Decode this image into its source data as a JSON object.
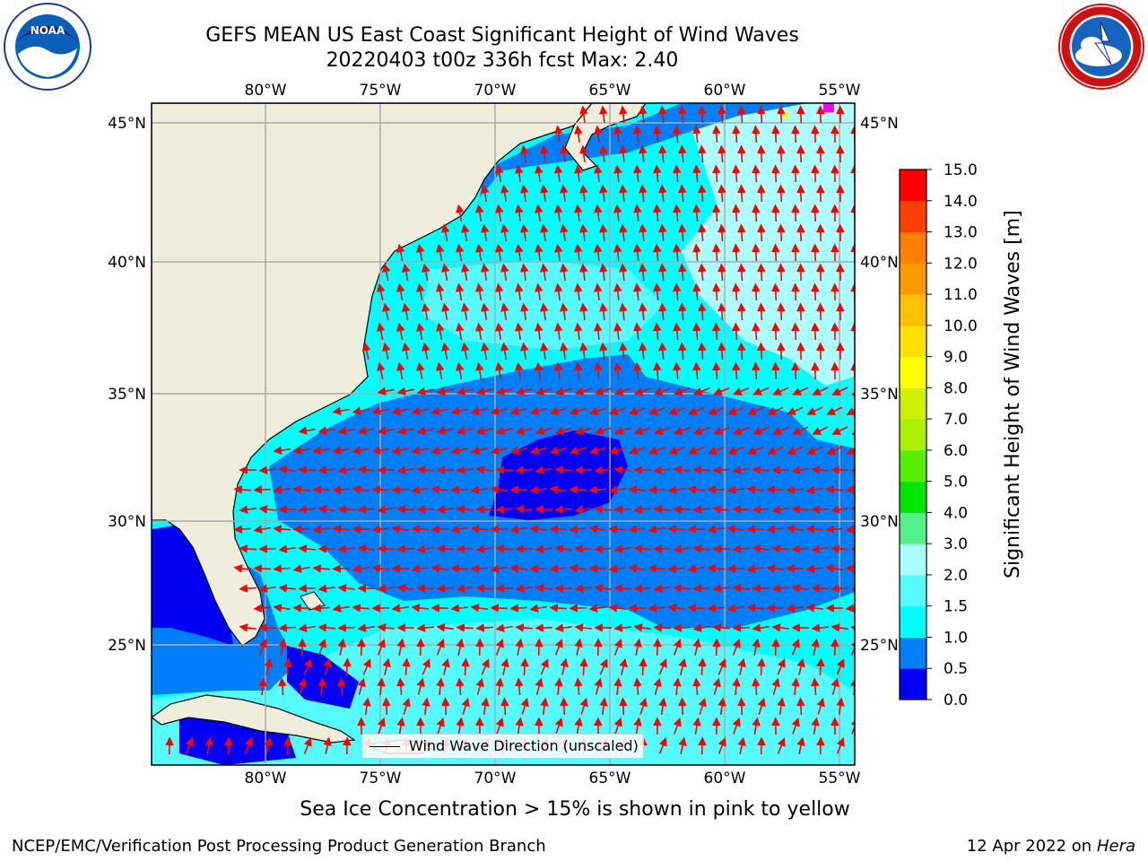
{
  "title": {
    "line1": "GEFS MEAN US East Coast Significant Height of Wind Waves",
    "line2": "20220403 t00z 336h fcst   Max: 2.40"
  },
  "logos": {
    "left": {
      "icon": "noaa-logo",
      "text": "NOAA"
    },
    "right": {
      "icon": "national-weather-service-logo"
    }
  },
  "map": {
    "lon_labels": [
      "80°W",
      "75°W",
      "70°W",
      "65°W",
      "60°W",
      "55°W"
    ],
    "lat_labels": [
      "45°N",
      "40°N",
      "35°N",
      "30°N",
      "25°N"
    ],
    "grid": true,
    "colors": {
      "land": "#efeedc",
      "coast": "#000000",
      "gridline": "#aaaaaa",
      "arrow": "#ff0000"
    },
    "legend": {
      "label": "Wind Wave Direction (unscaled)",
      "placement": "lower-center"
    }
  },
  "colorbar": {
    "label": "Significant Height of Wind Waves [m]",
    "ticks": [
      "0.0",
      "0.5",
      "1.0",
      "1.5",
      "2.0",
      "3.0",
      "4.0",
      "5.0",
      "6.0",
      "7.0",
      "8.0",
      "9.0",
      "10.0",
      "11.0",
      "12.0",
      "13.0",
      "14.0",
      "15.0"
    ],
    "colors": [
      "#0000f5",
      "#0080f8",
      "#00ffff",
      "#55fcff",
      "#aafefe",
      "#55f088",
      "#00e600",
      "#55ee00",
      "#aaf000",
      "#ccf000",
      "#ffff00",
      "#ffe000",
      "#ffc000",
      "#ff9900",
      "#ff8000",
      "#ff4000",
      "#ff0000"
    ]
  },
  "notes": {
    "ice": "Sea Ice Concentration > 15% is shown in pink to yellow"
  },
  "footer": {
    "left": "NCEP/EMC/Verification Post Processing Product Generation Branch",
    "date": "12 Apr 2022 on ",
    "machine": "Hera"
  }
}
